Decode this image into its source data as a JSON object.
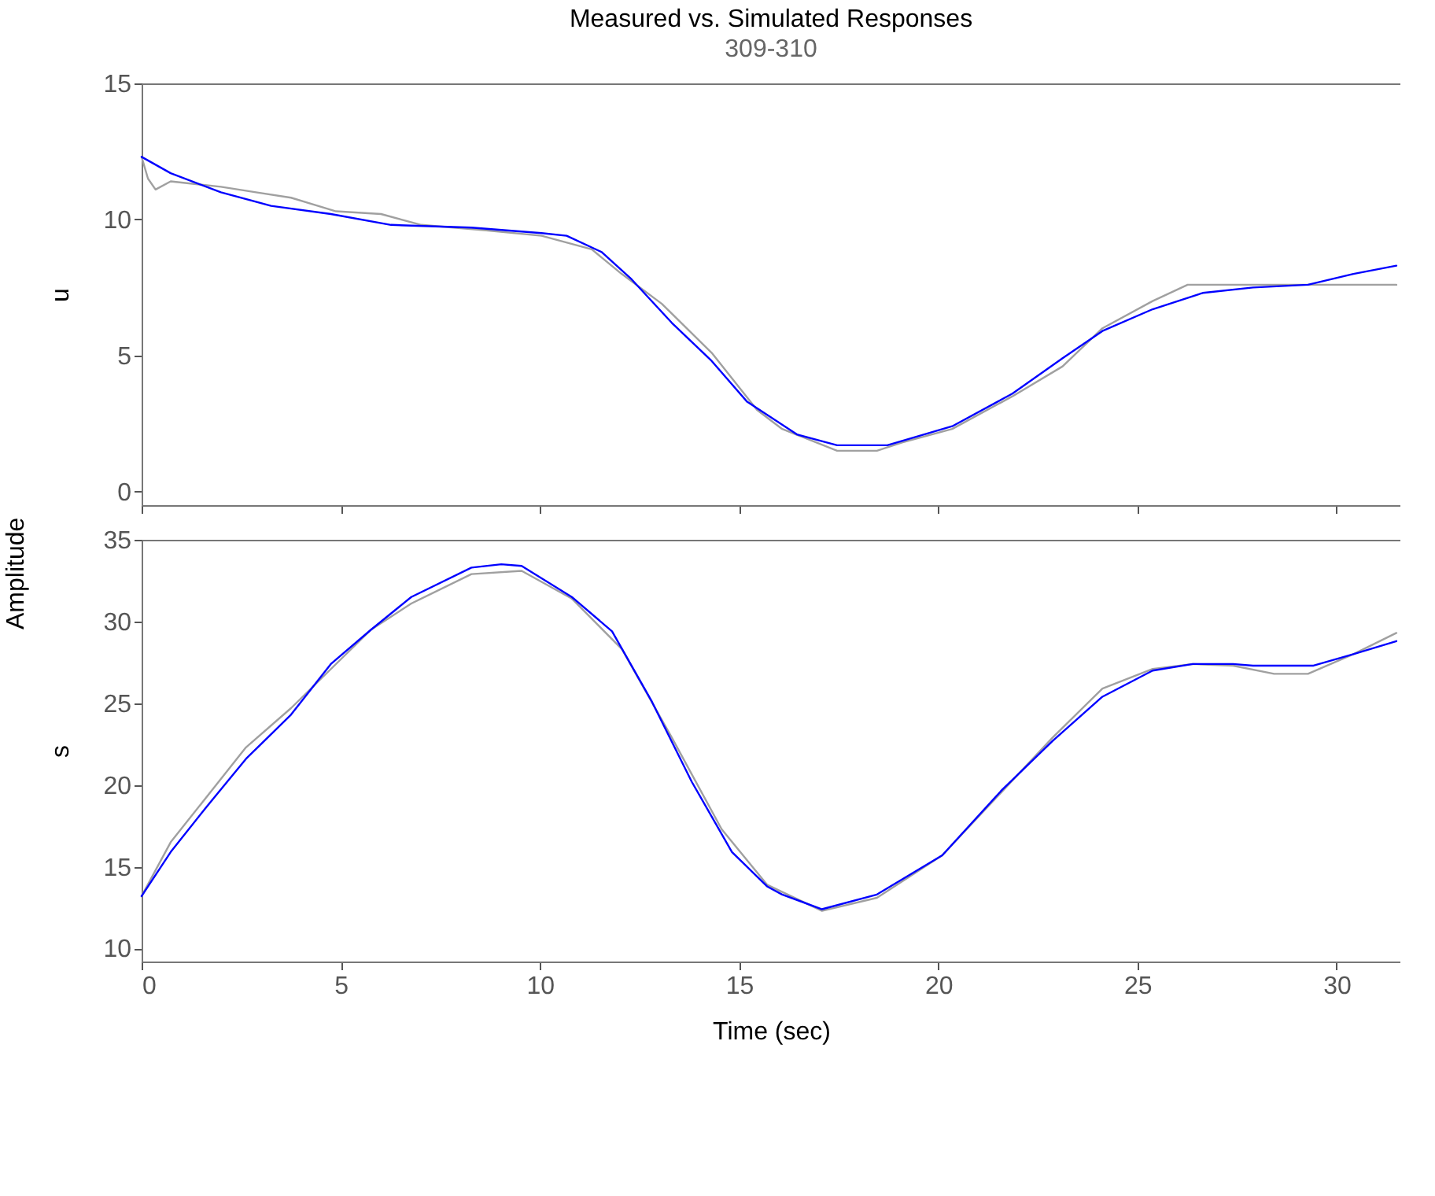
{
  "chart_data": [
    {
      "type": "line",
      "title": "Measured vs. Simulated Responses",
      "subtitle": "309-310",
      "ylabel": "u",
      "annotations": [
        "Amplitude"
      ],
      "xlim": [
        0,
        31.6
      ],
      "xticks": [
        0,
        5,
        10,
        15,
        20,
        25,
        30
      ],
      "ylim": [
        -0.5,
        15
      ],
      "yticks": [
        0,
        5,
        10,
        15
      ],
      "tick_labels": "y",
      "grid": false,
      "legend": false,
      "series": [
        {
          "color": "#a0a0a0",
          "x": [
            0,
            0.16,
            0.35,
            0.73,
            1.99,
            2.87,
            3.75,
            4.88,
            6.01,
            7.02,
            8.65,
            10.04,
            11.3,
            12.05,
            13.06,
            14.31,
            15.45,
            16.08,
            17.46,
            18.46,
            19.09,
            20.35,
            21.86,
            23.12,
            24.12,
            25.38,
            26.26,
            31.5
          ],
          "values": [
            12.3,
            11.5,
            11.1,
            11.4,
            11.2,
            11.0,
            10.8,
            10.3,
            10.2,
            9.8,
            9.6,
            9.4,
            8.9,
            8.0,
            6.9,
            5.1,
            3.0,
            2.3,
            1.5,
            1.5,
            1.8,
            2.3,
            3.5,
            4.6,
            6.0,
            7.0,
            7.6,
            7.6
          ]
        },
        {
          "color": "#0000ff",
          "x": [
            0,
            0.73,
            1.99,
            3.25,
            4.75,
            6.26,
            8.28,
            10.04,
            10.67,
            11.55,
            12.3,
            13.31,
            14.31,
            15.2,
            16.45,
            17.46,
            18.72,
            20.35,
            21.86,
            23.12,
            24.12,
            25.38,
            26.64,
            27.9,
            29.28,
            30.42,
            31.5
          ],
          "values": [
            12.3,
            11.7,
            11.0,
            10.5,
            10.2,
            9.8,
            9.7,
            9.5,
            9.4,
            8.8,
            7.8,
            6.2,
            4.8,
            3.3,
            2.1,
            1.7,
            1.7,
            2.4,
            3.6,
            4.9,
            5.9,
            6.7,
            7.3,
            7.5,
            7.6,
            8.0,
            8.3
          ]
        }
      ]
    },
    {
      "type": "line",
      "xlabel": "Time (sec)",
      "ylabel": "s",
      "xlim": [
        0,
        31.6
      ],
      "xticks": [
        0,
        5,
        10,
        15,
        20,
        25,
        30
      ],
      "ylim": [
        9.2,
        35
      ],
      "yticks": [
        10,
        15,
        20,
        25,
        30,
        35
      ],
      "grid": false,
      "legend": false,
      "series": [
        {
          "color": "#a0a0a0",
          "x": [
            0,
            0.73,
            1.61,
            2.62,
            3.75,
            5.76,
            6.77,
            8.28,
            9.54,
            10.8,
            12.06,
            13.31,
            14.56,
            15.7,
            17.08,
            18.46,
            20.1,
            22.87,
            24.12,
            25.38,
            26.39,
            27.4,
            28.43,
            29.28,
            30.42,
            31.5
          ],
          "values": [
            13.2,
            16.5,
            19.2,
            22.3,
            24.7,
            29.5,
            31.1,
            32.9,
            33.1,
            31.4,
            28.3,
            22.9,
            17.3,
            13.9,
            12.3,
            13.1,
            15.7,
            22.9,
            25.9,
            27.1,
            27.4,
            27.3,
            26.8,
            26.8,
            28.0,
            29.3
          ]
        },
        {
          "color": "#0000ff",
          "x": [
            0,
            0.73,
            1.61,
            2.62,
            3.75,
            4.75,
            5.76,
            6.77,
            8.28,
            9.03,
            9.54,
            10.8,
            11.81,
            12.81,
            13.81,
            14.82,
            15.7,
            16.08,
            17.08,
            18.46,
            20.1,
            21.6,
            22.87,
            24.12,
            25.38,
            26.39,
            27.4,
            27.9,
            29.42,
            30.42,
            31.5
          ],
          "values": [
            13.2,
            15.9,
            18.6,
            21.6,
            24.3,
            27.4,
            29.5,
            31.5,
            33.3,
            33.5,
            33.4,
            31.5,
            29.4,
            25.1,
            20.2,
            15.9,
            13.8,
            13.3,
            12.4,
            13.3,
            15.7,
            19.7,
            22.7,
            25.4,
            27.0,
            27.4,
            27.4,
            27.3,
            27.3,
            28.0,
            28.8
          ]
        }
      ]
    }
  ]
}
